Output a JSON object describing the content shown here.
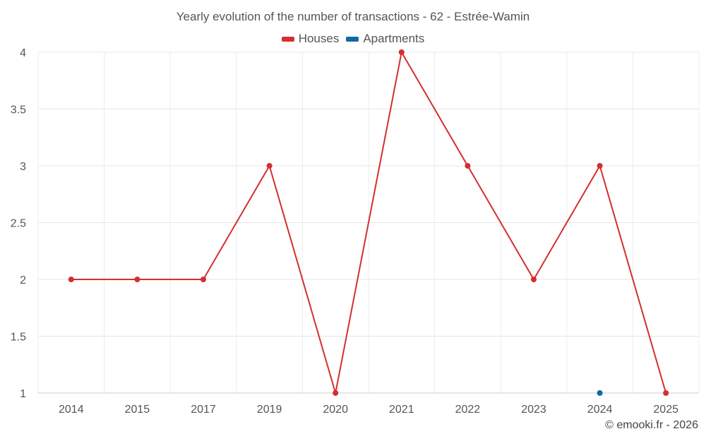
{
  "chart_data": {
    "type": "line",
    "title": "Yearly evolution of the number of transactions - 62 - Estrée-Wamin",
    "categories": [
      "2014",
      "2015",
      "2017",
      "2019",
      "2020",
      "2021",
      "2022",
      "2023",
      "2024",
      "2025"
    ],
    "series": [
      {
        "name": "Houses",
        "color": "#d32f2f",
        "values": [
          2,
          2,
          2,
          3,
          1,
          4,
          3,
          2,
          3,
          1
        ]
      },
      {
        "name": "Apartments",
        "color": "#0d6ba0",
        "values": [
          null,
          null,
          null,
          null,
          null,
          null,
          null,
          null,
          1,
          null
        ]
      }
    ],
    "ylim": [
      1,
      4
    ],
    "yticks": [
      "1",
      "1.5",
      "2",
      "2.5",
      "3",
      "3.5",
      "4"
    ],
    "xlabel": "",
    "ylabel": "",
    "grid": true,
    "legend_position": "top"
  },
  "credit": "© emooki.fr - 2026"
}
